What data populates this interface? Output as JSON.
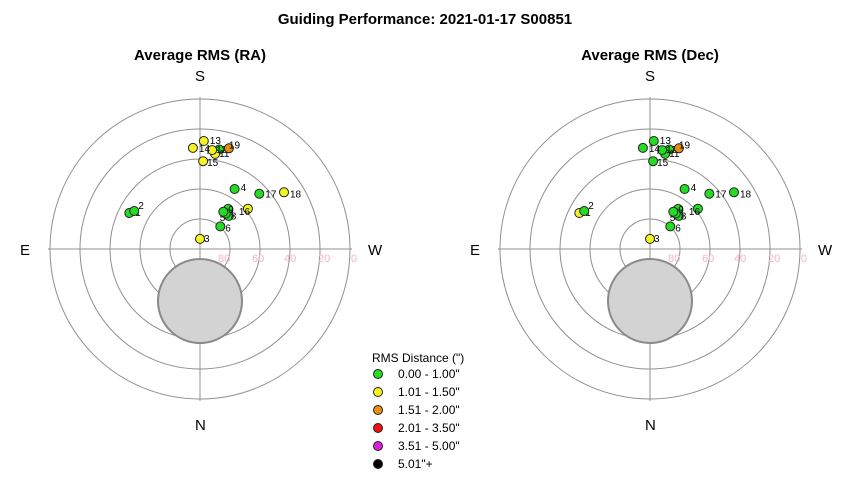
{
  "title": "Guiding Performance: 2021-01-17 S00851",
  "directions": {
    "north": "N",
    "south": "S",
    "east": "E",
    "west": "W"
  },
  "altitude_ticks": [
    "80",
    "60",
    "40",
    "20",
    "0"
  ],
  "legend": {
    "title": "RMS Distance (\")",
    "entries": [
      {
        "label": "0.00 - 1.00\"",
        "color": "#22dd22"
      },
      {
        "label": "1.01 - 1.50\"",
        "color": "#f4f422"
      },
      {
        "label": "1.51 - 2.00\"",
        "color": "#e8900c"
      },
      {
        "label": "2.01 - 3.50\"",
        "color": "#ee1111"
      },
      {
        "label": "3.51 - 5.00\"",
        "color": "#e01ee0"
      },
      {
        "label": "5.01\"+",
        "color": "#000000"
      }
    ]
  },
  "colors": {
    "ring": "#909090",
    "axis": "#909090",
    "moon_fill": "#d3d3d3",
    "moon_stroke": "#8a8a8a"
  },
  "moon": {
    "altitude": 40,
    "azimuth": 180
  },
  "chart_data": [
    {
      "type": "scatter",
      "projection": "polar altitude-azimuth (zenith at center, horizon at outer ring)",
      "title": "Average RMS (RA)",
      "radial_axis": {
        "quantity": "altitude (deg)",
        "range": [
          0,
          90
        ],
        "ticks": [
          80,
          60,
          40,
          20,
          0
        ]
      },
      "points": [
        {
          "label": "1",
          "alt": 43,
          "az": 117,
          "class": 0
        },
        {
          "label": "2",
          "alt": 45,
          "az": 120,
          "class": 0
        },
        {
          "label": "3",
          "alt": 84,
          "az": 180,
          "class": 1
        },
        {
          "label": "4",
          "alt": 49,
          "az": 210,
          "class": 0
        },
        {
          "label": "5",
          "alt": 64,
          "az": 221,
          "class": 0
        },
        {
          "label": "6",
          "alt": 72,
          "az": 222,
          "class": 0
        },
        {
          "label": "7",
          "alt": 61,
          "az": 215,
          "class": 0
        },
        {
          "label": "8",
          "alt": 64,
          "az": 216,
          "class": 0
        },
        {
          "label": "9",
          "alt": 64,
          "az": 212,
          "class": 0
        },
        {
          "label": "10",
          "alt": 30,
          "az": 191,
          "class": 0
        },
        {
          "label": "11",
          "alt": 33,
          "az": 189,
          "class": 1
        },
        {
          "label": "12",
          "alt": 31,
          "az": 187,
          "class": 1
        },
        {
          "label": "13",
          "alt": 26,
          "az": 182,
          "class": 1
        },
        {
          "label": "14",
          "alt": 30,
          "az": 176,
          "class": 1
        },
        {
          "label": "15",
          "alt": 38,
          "az": 182,
          "class": 1
        },
        {
          "label": "16",
          "alt": 53,
          "az": 230,
          "class": 1
        },
        {
          "label": "17",
          "alt": 42,
          "az": 227,
          "class": 0
        },
        {
          "label": "18",
          "alt": 30,
          "az": 236,
          "class": 1
        },
        {
          "label": "19",
          "alt": 28,
          "az": 196,
          "class": 2
        }
      ]
    },
    {
      "type": "scatter",
      "projection": "polar altitude-azimuth (zenith at center, horizon at outer ring)",
      "title": "Average RMS (Dec)",
      "radial_axis": {
        "quantity": "altitude (deg)",
        "range": [
          0,
          90
        ],
        "ticks": [
          80,
          60,
          40,
          20,
          0
        ]
      },
      "points": [
        {
          "label": "1",
          "alt": 43,
          "az": 117,
          "class": 1
        },
        {
          "label": "2",
          "alt": 45,
          "az": 120,
          "class": 0
        },
        {
          "label": "3",
          "alt": 84,
          "az": 180,
          "class": 1
        },
        {
          "label": "4",
          "alt": 49,
          "az": 210,
          "class": 0
        },
        {
          "label": "5",
          "alt": 64,
          "az": 221,
          "class": 0
        },
        {
          "label": "6",
          "alt": 72,
          "az": 222,
          "class": 0
        },
        {
          "label": "7",
          "alt": 61,
          "az": 215,
          "class": 0
        },
        {
          "label": "8",
          "alt": 64,
          "az": 216,
          "class": 0
        },
        {
          "label": "9",
          "alt": 64,
          "az": 212,
          "class": 0
        },
        {
          "label": "10",
          "alt": 30,
          "az": 191,
          "class": 0
        },
        {
          "label": "11",
          "alt": 33,
          "az": 189,
          "class": 0
        },
        {
          "label": "12",
          "alt": 31,
          "az": 187,
          "class": 0
        },
        {
          "label": "13",
          "alt": 26,
          "az": 182,
          "class": 0
        },
        {
          "label": "14",
          "alt": 30,
          "az": 176,
          "class": 0
        },
        {
          "label": "15",
          "alt": 38,
          "az": 182,
          "class": 0
        },
        {
          "label": "16",
          "alt": 53,
          "az": 230,
          "class": 0
        },
        {
          "label": "17",
          "alt": 42,
          "az": 227,
          "class": 0
        },
        {
          "label": "18",
          "alt": 30,
          "az": 236,
          "class": 0
        },
        {
          "label": "19",
          "alt": 28,
          "az": 196,
          "class": 2
        }
      ]
    }
  ]
}
